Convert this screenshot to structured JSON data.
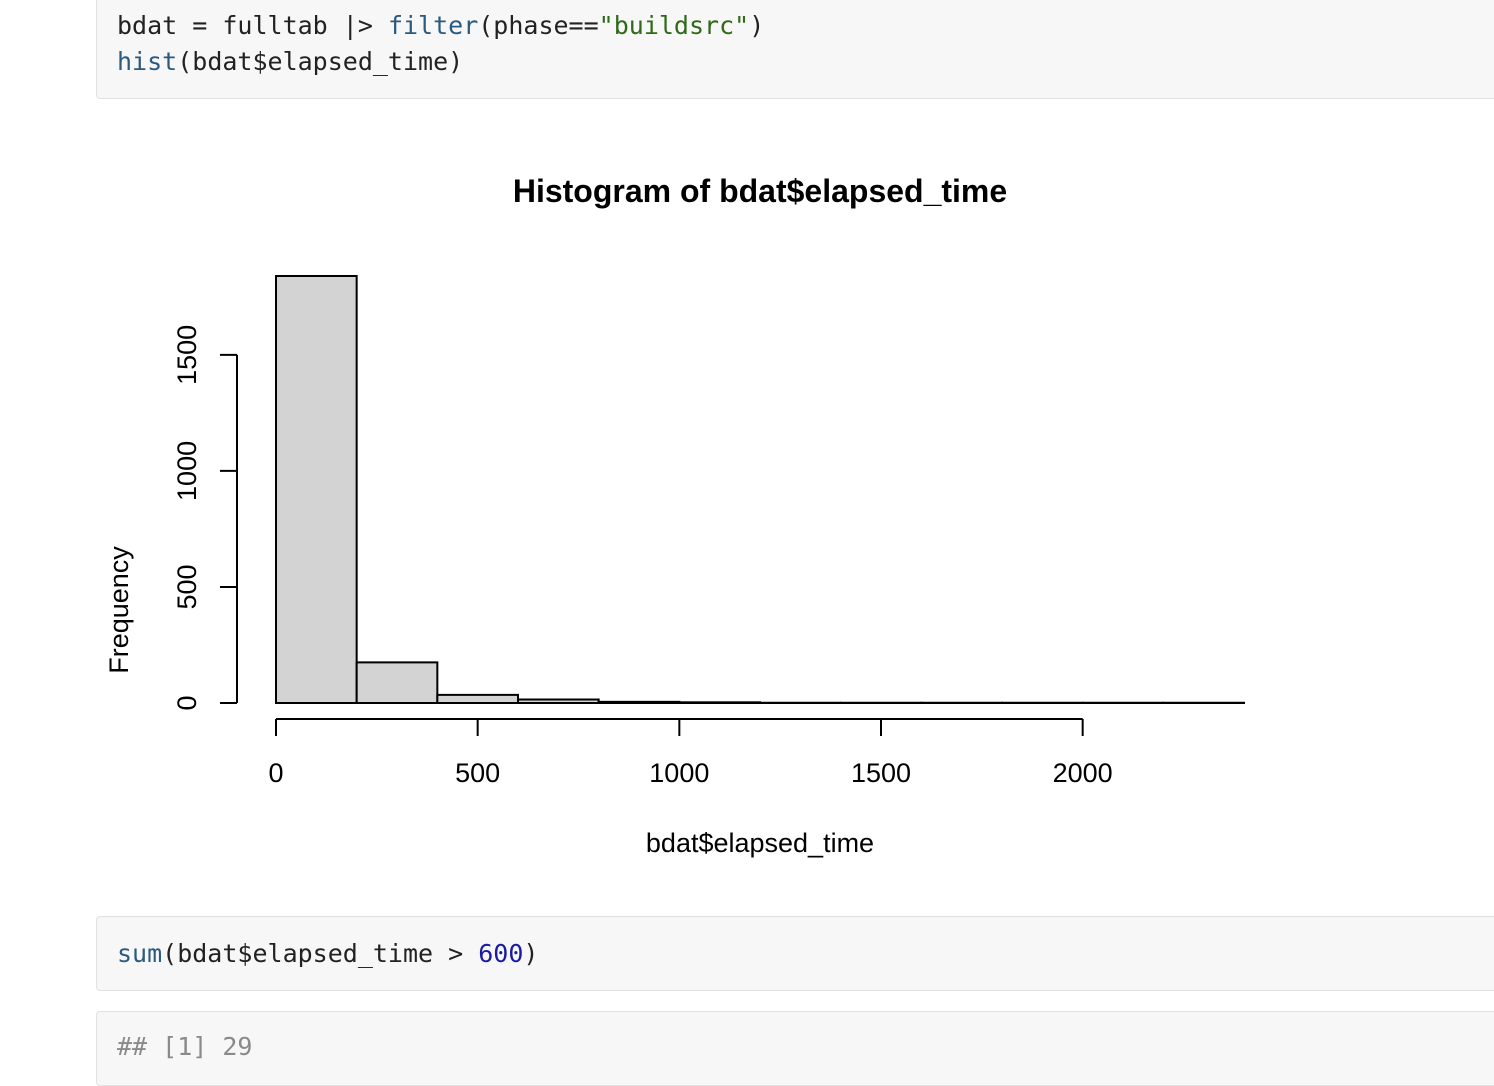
{
  "code_blocks": {
    "first": {
      "line1_prefix": "bdat = fulltab |> ",
      "line1_fn": "filter",
      "line1_mid": "(phase==",
      "line1_str": "\"buildsrc\"",
      "line1_end": ")",
      "line2_fn": "hist",
      "line2_rest": "(bdat$elapsed_time)"
    },
    "second": {
      "fn": "sum",
      "mid": "(bdat$elapsed_time > ",
      "num": "600",
      "end": ")"
    },
    "output": {
      "text": "## [1] 29"
    }
  },
  "chart_data": {
    "type": "bar",
    "title": "Histogram of bdat$elapsed_time",
    "xlabel": "bdat$elapsed_time",
    "ylabel": "Frequency",
    "bins": [
      {
        "x0": 0,
        "x1": 200,
        "count": 1840
      },
      {
        "x0": 200,
        "x1": 400,
        "count": 175
      },
      {
        "x0": 400,
        "x1": 600,
        "count": 35
      },
      {
        "x0": 600,
        "x1": 800,
        "count": 15
      },
      {
        "x0": 800,
        "x1": 1000,
        "count": 5
      },
      {
        "x0": 1000,
        "x1": 1200,
        "count": 3
      },
      {
        "x0": 1200,
        "x1": 1400,
        "count": 1
      },
      {
        "x0": 1400,
        "x1": 1600,
        "count": 1
      },
      {
        "x0": 1600,
        "x1": 1800,
        "count": 1
      },
      {
        "x0": 1800,
        "x1": 2000,
        "count": 1
      },
      {
        "x0": 2000,
        "x1": 2200,
        "count": 1
      },
      {
        "x0": 2200,
        "x1": 2400,
        "count": 1
      }
    ],
    "xticks": [
      0,
      500,
      1000,
      1500,
      2000
    ],
    "yticks": [
      0,
      500,
      1000,
      1500
    ],
    "xlim": [
      0,
      2400
    ],
    "ylim": [
      0,
      1840
    ],
    "bar_fill": "#d3d3d3",
    "bar_stroke": "#000000",
    "grid": false
  }
}
